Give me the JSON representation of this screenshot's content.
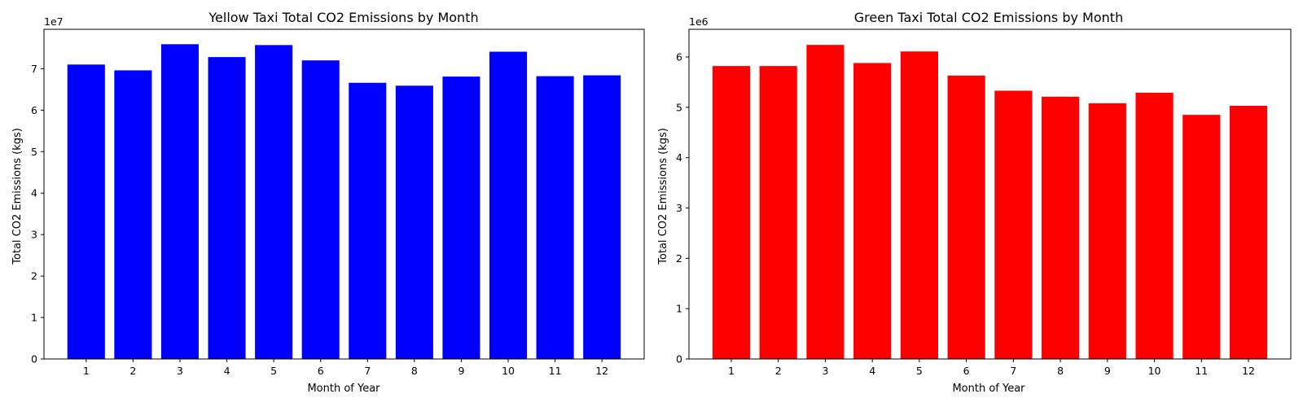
{
  "chart_data": [
    {
      "type": "bar",
      "title": "Yellow Taxi Total CO2 Emissions by Month",
      "xlabel": "Month of Year",
      "ylabel": "Total CO2 Emissions (kgs)",
      "categories": [
        "1",
        "2",
        "3",
        "4",
        "5",
        "6",
        "7",
        "8",
        "9",
        "10",
        "11",
        "12"
      ],
      "values": [
        71000000,
        69600000,
        75900000,
        72800000,
        75700000,
        72000000,
        66600000,
        65900000,
        68100000,
        74100000,
        68200000,
        68400000
      ],
      "color": "#0000ff",
      "ylim": [
        0,
        79500000
      ],
      "yticks": [
        0,
        10000000,
        20000000,
        30000000,
        40000000,
        50000000,
        60000000,
        70000000
      ],
      "ytick_labels": [
        "0",
        "1",
        "2",
        "3",
        "4",
        "5",
        "6",
        "7"
      ],
      "offset_text": "1e7",
      "grid": false,
      "legend": "none"
    },
    {
      "type": "bar",
      "title": "Green Taxi Total CO2 Emissions by Month",
      "xlabel": "Month of Year",
      "ylabel": "Total CO2 Emissions (kgs)",
      "categories": [
        "1",
        "2",
        "3",
        "4",
        "5",
        "6",
        "7",
        "8",
        "9",
        "10",
        "11",
        "12"
      ],
      "values": [
        5820000,
        5820000,
        6240000,
        5880000,
        6110000,
        5630000,
        5330000,
        5210000,
        5080000,
        5290000,
        4850000,
        5030000
      ],
      "color": "#ff0000",
      "ylim": [
        0,
        6550000
      ],
      "yticks": [
        0,
        1000000,
        2000000,
        3000000,
        4000000,
        5000000,
        6000000
      ],
      "ytick_labels": [
        "0",
        "1",
        "2",
        "3",
        "4",
        "5",
        "6"
      ],
      "offset_text": "1e6",
      "grid": false,
      "legend": "none"
    }
  ]
}
